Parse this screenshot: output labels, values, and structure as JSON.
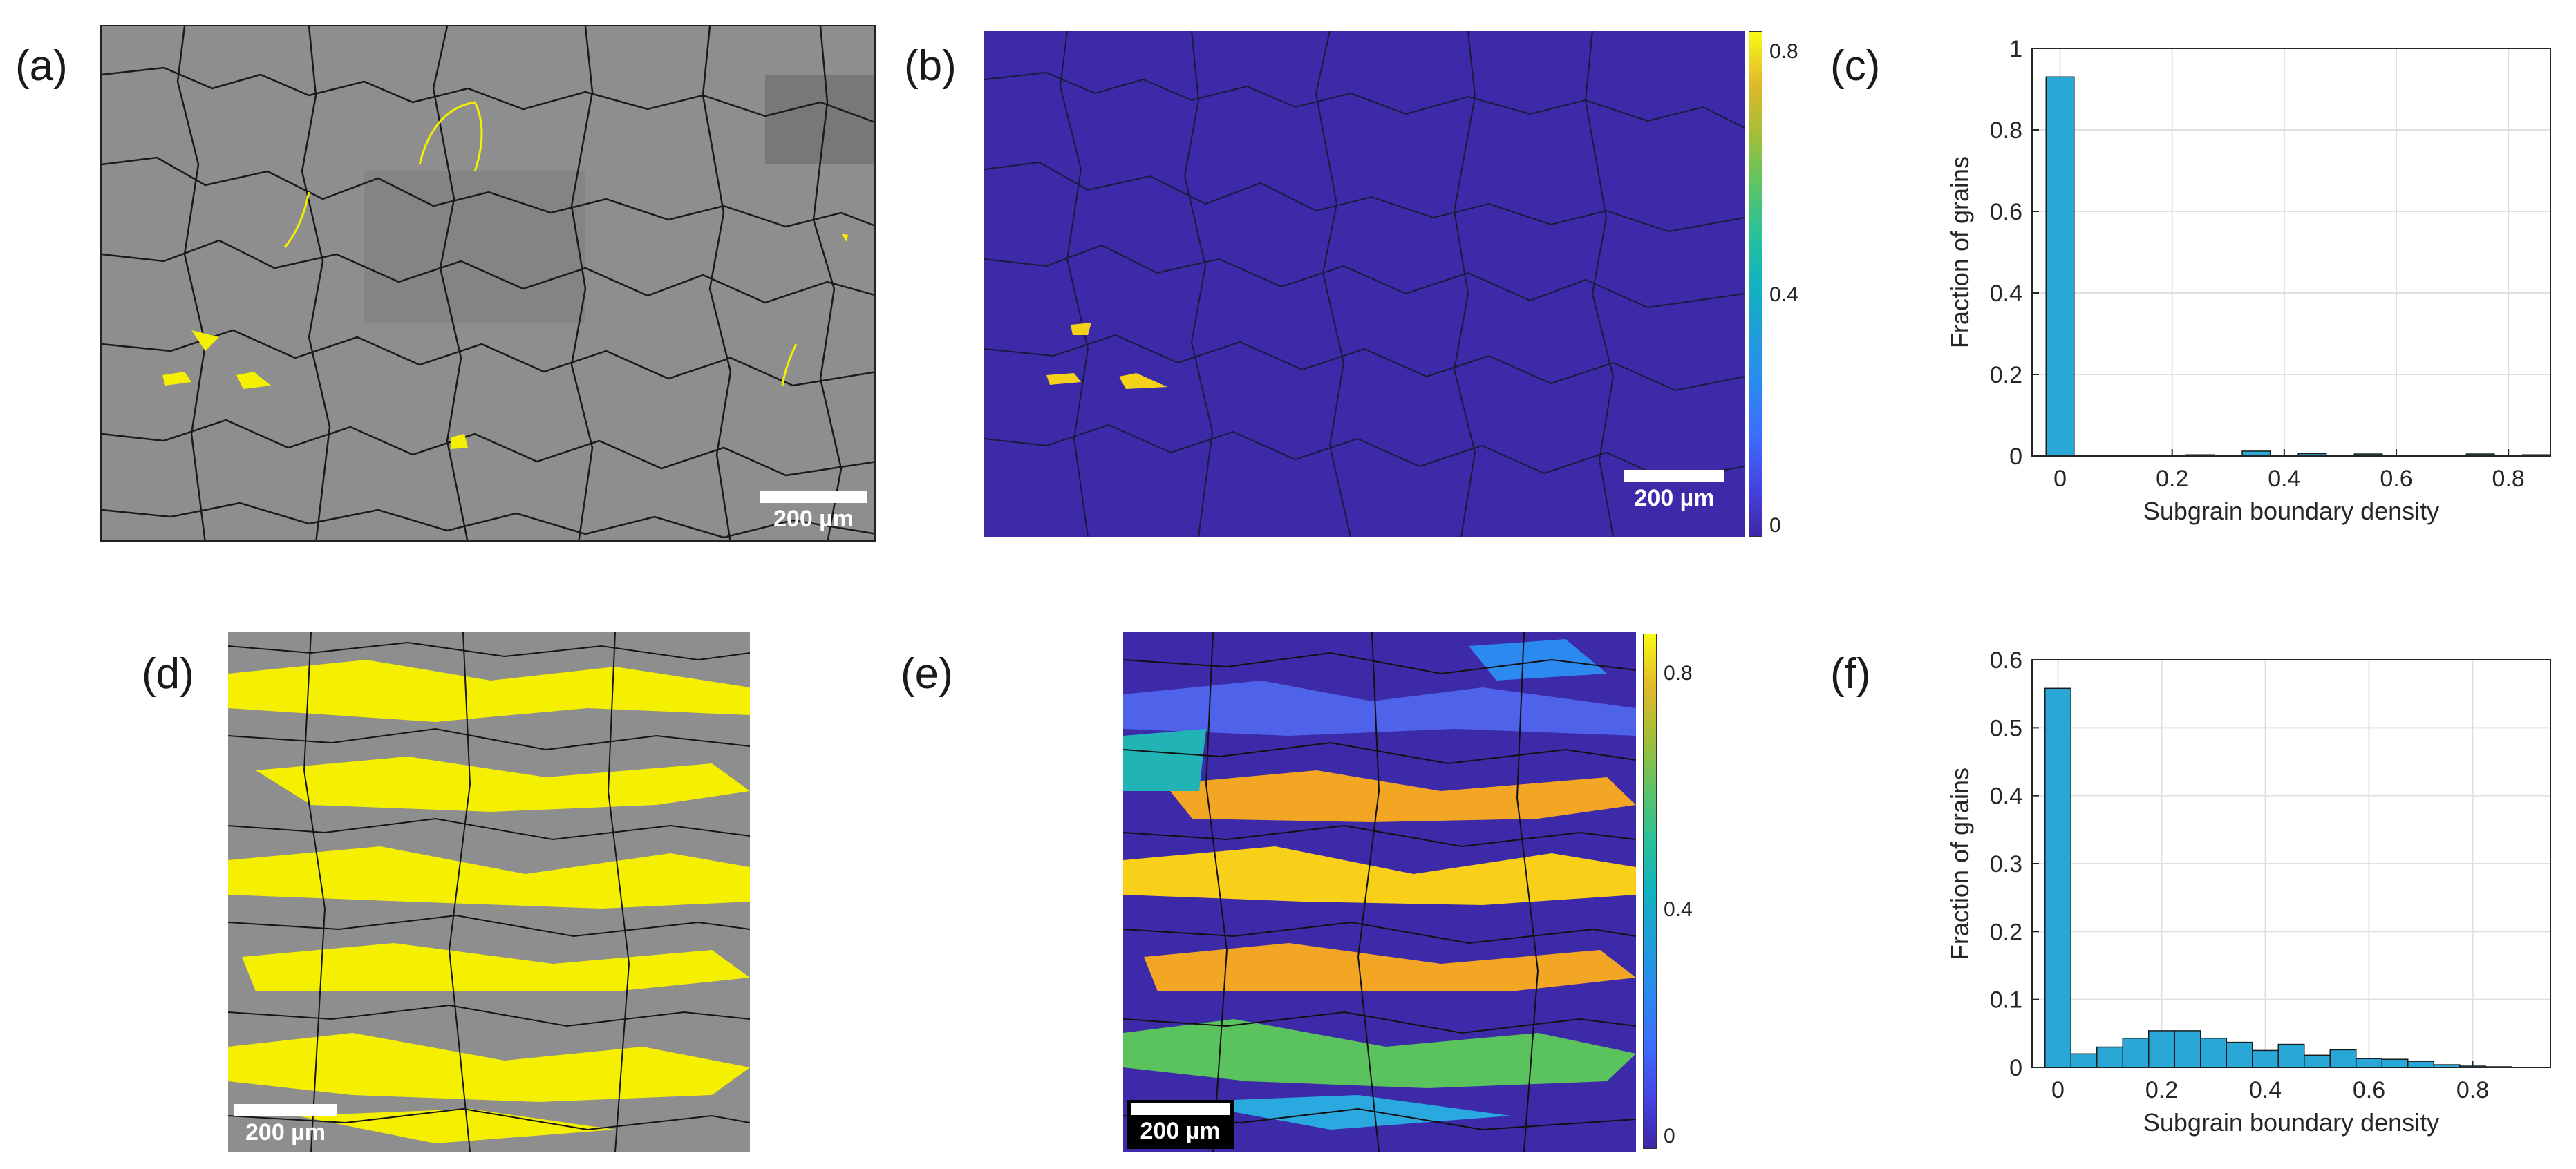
{
  "panel_labels": [
    "(a)",
    "(b)",
    "(c)",
    "(d)",
    "(e)",
    "(f)"
  ],
  "scale_bar_text": "200 µm",
  "colorbar_b": {
    "ticks": [
      "0.8",
      "0.4",
      "0"
    ]
  },
  "colorbar_e": {
    "ticks": [
      "0.8",
      "0.4",
      "0"
    ]
  },
  "colors": {
    "bar": "#29a8d8",
    "map_b": "#3c2aa8",
    "gray_map": "#8e8e8e",
    "yellow": "#f5f000"
  },
  "chart_data": [
    {
      "type": "bar",
      "panel": "(c)",
      "xlabel": "Subgrain boundary density",
      "ylabel": "Fraction of grains",
      "xlim": [
        -0.05,
        0.875
      ],
      "ylim": [
        0,
        1
      ],
      "xticks": [
        "0",
        "0.2",
        "0.4",
        "0.6",
        "0.8"
      ],
      "yticks": [
        "0",
        "0.2",
        "0.4",
        "0.6",
        "0.8",
        "1"
      ],
      "grid": true,
      "bin_width": 0.05,
      "bin_starts": [
        -0.025,
        0.025,
        0.075,
        0.125,
        0.175,
        0.225,
        0.275,
        0.325,
        0.375,
        0.425,
        0.475,
        0.525,
        0.575,
        0.625,
        0.675,
        0.725,
        0.775,
        0.825
      ],
      "values": [
        0.93,
        0.002,
        0.002,
        0.001,
        0.002,
        0.003,
        0.002,
        0.012,
        0.002,
        0.006,
        0.002,
        0.005,
        0.001,
        0.001,
        0.001,
        0.005,
        0.001,
        0.003
      ]
    },
    {
      "type": "bar",
      "panel": "(f)",
      "xlabel": "Subgrain boundary density",
      "ylabel": "Fraction of grains",
      "xlim": [
        -0.05,
        0.95
      ],
      "ylim": [
        0,
        0.6
      ],
      "xticks": [
        "0",
        "0.2",
        "0.4",
        "0.6",
        "0.8"
      ],
      "yticks": [
        "0",
        "0.1",
        "0.2",
        "0.3",
        "0.4",
        "0.5",
        "0.6"
      ],
      "grid": true,
      "bin_width": 0.05,
      "bin_starts": [
        -0.025,
        0.025,
        0.075,
        0.125,
        0.175,
        0.225,
        0.275,
        0.325,
        0.375,
        0.425,
        0.475,
        0.525,
        0.575,
        0.625,
        0.675,
        0.725,
        0.775,
        0.825
      ],
      "values": [
        0.558,
        0.02,
        0.03,
        0.043,
        0.054,
        0.054,
        0.043,
        0.037,
        0.025,
        0.034,
        0.018,
        0.026,
        0.013,
        0.012,
        0.009,
        0.004,
        0.002,
        0.001
      ]
    }
  ]
}
